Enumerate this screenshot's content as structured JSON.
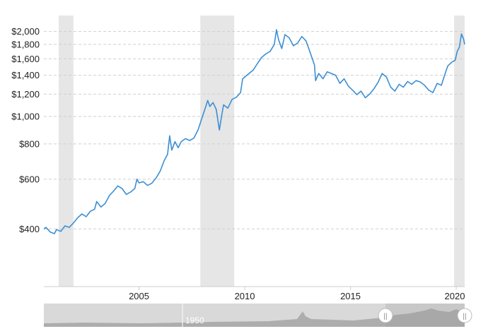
{
  "chart_data": {
    "type": "line",
    "title": "",
    "xlabel": "",
    "ylabel": "",
    "yscale": "log",
    "ylim": [
      250,
      2150
    ],
    "xlim": [
      2000.5,
      2020.4
    ],
    "y_ticks": [
      {
        "value": 400,
        "label": "$400"
      },
      {
        "value": 600,
        "label": "$600"
      },
      {
        "value": 800,
        "label": "$800"
      },
      {
        "value": 1000,
        "label": "$1,000"
      },
      {
        "value": 1200,
        "label": "$1,200"
      },
      {
        "value": 1400,
        "label": "$1,400"
      },
      {
        "value": 1600,
        "label": "$1,600"
      },
      {
        "value": 1800,
        "label": "$1,800"
      },
      {
        "value": 2000,
        "label": "$2,000"
      }
    ],
    "x_ticks": [
      {
        "value": 2005,
        "label": "2005"
      },
      {
        "value": 2010,
        "label": "2010"
      },
      {
        "value": 2015,
        "label": "2015"
      },
      {
        "value": 2020,
        "label": "2020"
      }
    ],
    "grid": "horizontal-dashed",
    "line_color": "#3b8fd4",
    "band_color": "#e6e6e6",
    "recession_bands": [
      {
        "start": 2001.2,
        "end": 2001.9
      },
      {
        "start": 2007.9,
        "end": 2009.5
      },
      {
        "start": 2019.9,
        "end": 2020.4
      }
    ],
    "series": [
      {
        "values": [
          {
            "x": 2000.5,
            "y": 400
          },
          {
            "x": 2000.6,
            "y": 405
          },
          {
            "x": 2000.8,
            "y": 390
          },
          {
            "x": 2001.0,
            "y": 385
          },
          {
            "x": 2001.1,
            "y": 398
          },
          {
            "x": 2001.3,
            "y": 392
          },
          {
            "x": 2001.5,
            "y": 410
          },
          {
            "x": 2001.7,
            "y": 405
          },
          {
            "x": 2001.9,
            "y": 420
          },
          {
            "x": 2002.1,
            "y": 438
          },
          {
            "x": 2002.3,
            "y": 452
          },
          {
            "x": 2002.5,
            "y": 442
          },
          {
            "x": 2002.7,
            "y": 462
          },
          {
            "x": 2002.9,
            "y": 470
          },
          {
            "x": 2003.0,
            "y": 500
          },
          {
            "x": 2003.2,
            "y": 478
          },
          {
            "x": 2003.4,
            "y": 492
          },
          {
            "x": 2003.6,
            "y": 525
          },
          {
            "x": 2003.8,
            "y": 545
          },
          {
            "x": 2004.0,
            "y": 568
          },
          {
            "x": 2004.2,
            "y": 556
          },
          {
            "x": 2004.4,
            "y": 530
          },
          {
            "x": 2004.6,
            "y": 540
          },
          {
            "x": 2004.8,
            "y": 556
          },
          {
            "x": 2004.9,
            "y": 600
          },
          {
            "x": 2005.0,
            "y": 582
          },
          {
            "x": 2005.2,
            "y": 588
          },
          {
            "x": 2005.4,
            "y": 570
          },
          {
            "x": 2005.6,
            "y": 580
          },
          {
            "x": 2005.8,
            "y": 605
          },
          {
            "x": 2006.0,
            "y": 640
          },
          {
            "x": 2006.2,
            "y": 700
          },
          {
            "x": 2006.35,
            "y": 735
          },
          {
            "x": 2006.45,
            "y": 855
          },
          {
            "x": 2006.55,
            "y": 760
          },
          {
            "x": 2006.7,
            "y": 815
          },
          {
            "x": 2006.85,
            "y": 775
          },
          {
            "x": 2007.0,
            "y": 815
          },
          {
            "x": 2007.2,
            "y": 835
          },
          {
            "x": 2007.4,
            "y": 822
          },
          {
            "x": 2007.6,
            "y": 840
          },
          {
            "x": 2007.8,
            "y": 900
          },
          {
            "x": 2008.0,
            "y": 1000
          },
          {
            "x": 2008.15,
            "y": 1080
          },
          {
            "x": 2008.25,
            "y": 1140
          },
          {
            "x": 2008.35,
            "y": 1085
          },
          {
            "x": 2008.5,
            "y": 1120
          },
          {
            "x": 2008.65,
            "y": 1060
          },
          {
            "x": 2008.8,
            "y": 895
          },
          {
            "x": 2008.9,
            "y": 1000
          },
          {
            "x": 2009.0,
            "y": 1100
          },
          {
            "x": 2009.2,
            "y": 1070
          },
          {
            "x": 2009.4,
            "y": 1150
          },
          {
            "x": 2009.6,
            "y": 1170
          },
          {
            "x": 2009.8,
            "y": 1215
          },
          {
            "x": 2009.9,
            "y": 1360
          },
          {
            "x": 2010.0,
            "y": 1380
          },
          {
            "x": 2010.2,
            "y": 1420
          },
          {
            "x": 2010.4,
            "y": 1460
          },
          {
            "x": 2010.6,
            "y": 1540
          },
          {
            "x": 2010.8,
            "y": 1620
          },
          {
            "x": 2011.0,
            "y": 1665
          },
          {
            "x": 2011.2,
            "y": 1700
          },
          {
            "x": 2011.4,
            "y": 1800
          },
          {
            "x": 2011.5,
            "y": 2030
          },
          {
            "x": 2011.6,
            "y": 1870
          },
          {
            "x": 2011.75,
            "y": 1740
          },
          {
            "x": 2011.9,
            "y": 1950
          },
          {
            "x": 2012.1,
            "y": 1900
          },
          {
            "x": 2012.3,
            "y": 1780
          },
          {
            "x": 2012.5,
            "y": 1820
          },
          {
            "x": 2012.7,
            "y": 1920
          },
          {
            "x": 2012.9,
            "y": 1850
          },
          {
            "x": 2013.1,
            "y": 1680
          },
          {
            "x": 2013.3,
            "y": 1520
          },
          {
            "x": 2013.35,
            "y": 1340
          },
          {
            "x": 2013.5,
            "y": 1420
          },
          {
            "x": 2013.7,
            "y": 1360
          },
          {
            "x": 2013.9,
            "y": 1440
          },
          {
            "x": 2014.1,
            "y": 1420
          },
          {
            "x": 2014.3,
            "y": 1400
          },
          {
            "x": 2014.5,
            "y": 1310
          },
          {
            "x": 2014.7,
            "y": 1360
          },
          {
            "x": 2014.9,
            "y": 1280
          },
          {
            "x": 2015.1,
            "y": 1240
          },
          {
            "x": 2015.3,
            "y": 1195
          },
          {
            "x": 2015.5,
            "y": 1230
          },
          {
            "x": 2015.7,
            "y": 1165
          },
          {
            "x": 2015.9,
            "y": 1200
          },
          {
            "x": 2016.1,
            "y": 1250
          },
          {
            "x": 2016.3,
            "y": 1320
          },
          {
            "x": 2016.5,
            "y": 1420
          },
          {
            "x": 2016.7,
            "y": 1380
          },
          {
            "x": 2016.9,
            "y": 1270
          },
          {
            "x": 2017.1,
            "y": 1230
          },
          {
            "x": 2017.3,
            "y": 1300
          },
          {
            "x": 2017.5,
            "y": 1270
          },
          {
            "x": 2017.7,
            "y": 1330
          },
          {
            "x": 2017.9,
            "y": 1300
          },
          {
            "x": 2018.1,
            "y": 1340
          },
          {
            "x": 2018.3,
            "y": 1325
          },
          {
            "x": 2018.5,
            "y": 1290
          },
          {
            "x": 2018.7,
            "y": 1240
          },
          {
            "x": 2018.9,
            "y": 1215
          },
          {
            "x": 2019.1,
            "y": 1310
          },
          {
            "x": 2019.3,
            "y": 1290
          },
          {
            "x": 2019.45,
            "y": 1400
          },
          {
            "x": 2019.6,
            "y": 1510
          },
          {
            "x": 2019.8,
            "y": 1560
          },
          {
            "x": 2019.95,
            "y": 1580
          },
          {
            "x": 2020.05,
            "y": 1700
          },
          {
            "x": 2020.15,
            "y": 1760
          },
          {
            "x": 2020.25,
            "y": 1960
          },
          {
            "x": 2020.35,
            "y": 1880
          },
          {
            "x": 2020.4,
            "y": 1800
          }
        ]
      }
    ]
  },
  "navigator": {
    "label": "1950",
    "handle_glyph": "||"
  }
}
